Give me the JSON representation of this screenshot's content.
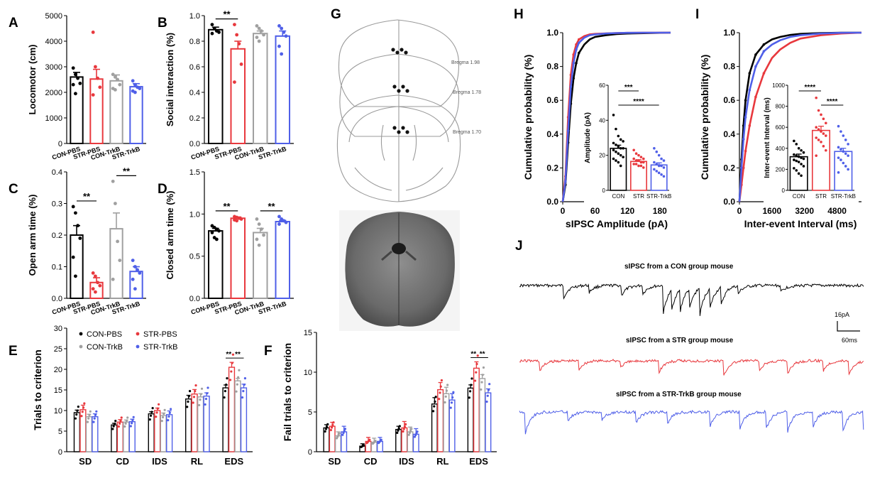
{
  "colors": {
    "con": "#000000",
    "str": "#e8383d",
    "contrkb": "#a0a0a0",
    "strtrkb": "#4f5fe8"
  },
  "panels": {
    "A": "A",
    "B": "B",
    "C": "C",
    "D": "D",
    "E": "E",
    "F": "F",
    "G": "G",
    "H": "H",
    "I": "I",
    "J": "J"
  },
  "chart_data": [
    {
      "id": "A",
      "type": "bar",
      "ylabel": "Locomotor (cm)",
      "ylim": [
        0,
        5000
      ],
      "yticks": [
        "0",
        "1000",
        "2000",
        "3000",
        "4000",
        "5000"
      ],
      "categories": [
        "CON-PBS",
        "STR-PBS",
        "CON-TrkB",
        "STR-TrkB"
      ],
      "values": [
        2600,
        2520,
        2450,
        2220
      ],
      "errors": [
        180,
        380,
        230,
        120
      ],
      "points": [
        [
          2950,
          2700,
          2550,
          2350,
          2300,
          1950
        ],
        [
          4350,
          3000,
          2550,
          2200,
          1900
        ],
        [
          2700,
          2600,
          2500,
          2300,
          2150,
          2100
        ],
        [
          2450,
          2300,
          2200,
          2150,
          2050,
          2000
        ]
      ]
    },
    {
      "id": "B",
      "type": "bar",
      "ylabel": "Social interaction (%)",
      "ylim": [
        0,
        1.0
      ],
      "yticks": [
        "0.0",
        "0.2",
        "0.4",
        "0.6",
        "0.8",
        "1.0"
      ],
      "categories": [
        "CON-PBS",
        "STR-PBS",
        "CON-TrkB",
        "STR-TrkB"
      ],
      "values": [
        0.89,
        0.74,
        0.86,
        0.84
      ],
      "errors": [
        0.02,
        0.06,
        0.02,
        0.04
      ],
      "points": [
        [
          0.93,
          0.9,
          0.88,
          0.87,
          0.86
        ],
        [
          0.93,
          0.85,
          0.78,
          0.62,
          0.48
        ],
        [
          0.92,
          0.9,
          0.88,
          0.85,
          0.83,
          0.8
        ],
        [
          0.92,
          0.9,
          0.87,
          0.84,
          0.76,
          0.7
        ]
      ],
      "sig": [
        {
          "a": 0,
          "b": 1,
          "label": "**"
        }
      ]
    },
    {
      "id": "C",
      "type": "bar",
      "ylabel": "Open arm time (%)",
      "ylim": [
        0,
        0.4
      ],
      "yticks": [
        "0.0",
        "0.1",
        "0.2",
        "0.3",
        "0.4"
      ],
      "categories": [
        "CON-PBS",
        "STR-PBS",
        "CON-TrkB",
        "STR-TrkB"
      ],
      "values": [
        0.2,
        0.05,
        0.22,
        0.085
      ],
      "errors": [
        0.03,
        0.015,
        0.05,
        0.015
      ],
      "points": [
        [
          0.29,
          0.27,
          0.23,
          0.19,
          0.13,
          0.07
        ],
        [
          0.08,
          0.07,
          0.05,
          0.04,
          0.03,
          0.02
        ],
        [
          0.37,
          0.3,
          0.18,
          0.12,
          0.06
        ],
        [
          0.12,
          0.1,
          0.09,
          0.08,
          0.06,
          0.03
        ]
      ],
      "sig": [
        {
          "a": 0,
          "b": 1,
          "label": "**"
        },
        {
          "a": 2,
          "b": 3,
          "label": "**"
        }
      ]
    },
    {
      "id": "D",
      "type": "bar",
      "ylabel": "Closed arm time (%)",
      "ylim": [
        0,
        1.5
      ],
      "yticks": [
        "0.0",
        "0.5",
        "1.0",
        "1.5"
      ],
      "categories": [
        "CON-PBS",
        "STR-PBS",
        "CON-TrkB",
        "STR-TrkB"
      ],
      "values": [
        0.8,
        0.95,
        0.78,
        0.91
      ],
      "errors": [
        0.03,
        0.015,
        0.05,
        0.015
      ],
      "points": [
        [
          0.86,
          0.84,
          0.82,
          0.8,
          0.78,
          0.72,
          0.7
        ],
        [
          0.97,
          0.96,
          0.95,
          0.94,
          0.93,
          0.92
        ],
        [
          0.94,
          0.88,
          0.82,
          0.75,
          0.7,
          0.63
        ],
        [
          0.97,
          0.94,
          0.92,
          0.9,
          0.88
        ]
      ],
      "sig": [
        {
          "a": 0,
          "b": 1,
          "label": "**"
        },
        {
          "a": 2,
          "b": 3,
          "label": "**"
        }
      ]
    },
    {
      "id": "E",
      "type": "bar",
      "ylabel": "Trials to criterion",
      "ylim": [
        0,
        30
      ],
      "yticks": [
        "0",
        "5",
        "10",
        "15",
        "20",
        "25",
        "30"
      ],
      "categories": [
        "SD",
        "CD",
        "IDS",
        "RL",
        "EDS"
      ],
      "legend": [
        "CON-PBS",
        "STR-PBS",
        "CON-TrkB",
        "STR-TrkB"
      ],
      "series": [
        {
          "name": "CON-PBS",
          "values": [
            9.5,
            6.5,
            9.2,
            12.8,
            15.5
          ],
          "errors": [
            0.6,
            0.4,
            0.5,
            0.9,
            0.7
          ]
        },
        {
          "name": "STR-PBS",
          "values": [
            10.2,
            7.2,
            10.0,
            14.0,
            20.5
          ],
          "errors": [
            1.1,
            0.6,
            0.6,
            1.1,
            1.2
          ]
        },
        {
          "name": "CON-TrkB",
          "values": [
            8.5,
            7.2,
            8.8,
            13.3,
            17.2
          ],
          "errors": [
            0.6,
            0.5,
            0.6,
            0.8,
            0.6
          ]
        },
        {
          "name": "STR-TrkB",
          "values": [
            8.5,
            7.3,
            9.0,
            13.5,
            15.5
          ],
          "errors": [
            0.7,
            0.6,
            0.9,
            0.8,
            0.9
          ]
        }
      ],
      "sig": [
        {
          "cat": 4,
          "a": 0,
          "b": 1,
          "label": "**"
        },
        {
          "cat": 4,
          "a": 1,
          "b": 3,
          "label": "**"
        }
      ]
    },
    {
      "id": "F",
      "type": "bar",
      "ylabel": "Fail trials to criterion",
      "ylim": [
        0,
        15
      ],
      "yticks": [
        "0",
        "5",
        "10",
        "15"
      ],
      "categories": [
        "SD",
        "CD",
        "IDS",
        "RL",
        "EDS"
      ],
      "series": [
        {
          "name": "CON-PBS",
          "values": [
            3.0,
            0.7,
            2.8,
            6.0,
            8.0
          ],
          "errors": [
            0.4,
            0.3,
            0.4,
            0.8,
            0.4
          ]
        },
        {
          "name": "STR-PBS",
          "values": [
            3.2,
            1.3,
            3.0,
            7.8,
            10.5
          ],
          "errors": [
            0.5,
            0.5,
            0.8,
            0.9,
            0.8
          ]
        },
        {
          "name": "CON-TrkB",
          "values": [
            2.0,
            1.2,
            2.5,
            7.3,
            9.2
          ],
          "errors": [
            0.5,
            0.5,
            0.6,
            0.8,
            0.5
          ]
        },
        {
          "name": "STR-TrkB",
          "values": [
            2.5,
            1.3,
            2.2,
            6.5,
            7.4
          ],
          "errors": [
            0.7,
            0.5,
            0.7,
            0.8,
            0.5
          ]
        }
      ],
      "sig": [
        {
          "cat": 4,
          "a": 0,
          "b": 1,
          "label": "**"
        },
        {
          "cat": 4,
          "a": 1,
          "b": 3,
          "label": "**"
        }
      ]
    },
    {
      "id": "H",
      "type": "line",
      "xlabel": "sIPSC Amplitude (pA)",
      "ylabel": "Cumulative probability (%)",
      "xlim": [
        0,
        200
      ],
      "ylim": [
        0,
        1.0
      ],
      "xticks": [
        "0",
        "60",
        "120",
        "180"
      ],
      "yticks": [
        "0.0",
        "0.2",
        "0.4",
        "0.6",
        "0.8",
        "1.0"
      ],
      "series": [
        {
          "name": "CON",
          "x": [
            0,
            5,
            10,
            15,
            20,
            25,
            30,
            40,
            50,
            60,
            80,
            100,
            120,
            150,
            180,
            200
          ],
          "y": [
            0,
            0.1,
            0.35,
            0.58,
            0.73,
            0.82,
            0.88,
            0.93,
            0.96,
            0.975,
            0.985,
            0.992,
            0.995,
            0.997,
            0.999,
            1.0
          ]
        },
        {
          "name": "STR",
          "x": [
            0,
            5,
            10,
            15,
            20,
            25,
            30,
            40,
            50,
            60,
            80,
            100,
            120,
            150,
            180,
            200
          ],
          "y": [
            0,
            0.15,
            0.5,
            0.75,
            0.87,
            0.93,
            0.96,
            0.98,
            0.99,
            0.993,
            0.996,
            0.998,
            0.999,
            1.0,
            1.0,
            1.0
          ]
        },
        {
          "name": "STR-TrkB",
          "x": [
            0,
            5,
            10,
            15,
            20,
            25,
            30,
            40,
            50,
            60,
            80,
            100,
            120,
            150,
            180,
            200
          ],
          "y": [
            0,
            0.12,
            0.42,
            0.68,
            0.82,
            0.9,
            0.94,
            0.97,
            0.985,
            0.99,
            0.995,
            0.998,
            0.999,
            1.0,
            1.0,
            1.0
          ]
        }
      ],
      "inset": {
        "ylabel": "Amplitude (pA)",
        "ylim": [
          0,
          60
        ],
        "yticks": [
          "0",
          "20",
          "40",
          "60"
        ],
        "categories": [
          "CON",
          "STR",
          "STR-TrkB"
        ],
        "values": [
          24,
          16.5,
          14.5
        ],
        "errors": [
          1.8,
          1.0,
          1.2
        ],
        "points": [
          [
            43,
            35,
            31,
            29,
            28,
            27,
            26,
            25,
            24,
            24,
            23,
            22,
            21,
            20,
            19,
            18,
            17,
            16,
            14
          ],
          [
            23,
            21,
            20,
            19,
            18,
            18,
            17,
            17,
            16,
            16,
            15,
            15,
            14,
            14,
            13
          ],
          [
            24,
            22,
            20,
            18,
            17,
            16,
            15,
            14,
            14,
            13,
            12,
            11,
            10,
            9,
            8
          ]
        ],
        "sig": [
          {
            "a": 0,
            "b": 1,
            "label": "***"
          },
          {
            "a": 0,
            "b": 2,
            "label": "****"
          }
        ]
      }
    },
    {
      "id": "I",
      "type": "line",
      "xlabel": "Inter-event Interval (ms)",
      "ylabel": "Cumulative probability (%)",
      "xlim": [
        0,
        6000
      ],
      "ylim": [
        0,
        1.0
      ],
      "xticks": [
        "0",
        "1600",
        "3200",
        "4800"
      ],
      "yticks": [
        "0.0",
        "0.2",
        "0.4",
        "0.6",
        "0.8",
        "1.0"
      ],
      "series": [
        {
          "name": "CON",
          "x": [
            0,
            100,
            200,
            300,
            500,
            800,
            1200,
            1600,
            2000,
            2500,
            3000,
            4000,
            5000,
            6000
          ],
          "y": [
            0,
            0.25,
            0.45,
            0.6,
            0.76,
            0.87,
            0.93,
            0.96,
            0.975,
            0.987,
            0.993,
            0.998,
            1.0,
            1.0
          ]
        },
        {
          "name": "STR",
          "x": [
            0,
            100,
            200,
            300,
            500,
            800,
            1200,
            1600,
            2000,
            2500,
            3000,
            4000,
            5000,
            6000
          ],
          "y": [
            0,
            0.1,
            0.2,
            0.3,
            0.45,
            0.62,
            0.76,
            0.85,
            0.9,
            0.94,
            0.965,
            0.985,
            0.995,
            1.0
          ]
        },
        {
          "name": "STR-TrkB",
          "x": [
            0,
            100,
            200,
            300,
            500,
            800,
            1200,
            1600,
            2000,
            2500,
            3000,
            4000,
            5000,
            6000
          ],
          "y": [
            0,
            0.2,
            0.37,
            0.5,
            0.66,
            0.8,
            0.89,
            0.93,
            0.955,
            0.975,
            0.985,
            0.995,
            0.999,
            1.0
          ]
        }
      ],
      "inset": {
        "ylabel": "Inter-event Interval (ms)",
        "ylim": [
          0,
          1000
        ],
        "yticks": [
          "0",
          "200",
          "400",
          "600",
          "800",
          "1000"
        ],
        "categories": [
          "CON",
          "STR",
          "STR-TrkB"
        ],
        "values": [
          320,
          570,
          370
        ],
        "errors": [
          25,
          40,
          30
        ],
        "points": [
          [
            470,
            440,
            400,
            380,
            360,
            340,
            330,
            320,
            310,
            300,
            290,
            280,
            270,
            250,
            230,
            210,
            190,
            160,
            140
          ],
          [
            880,
            760,
            720,
            680,
            640,
            600,
            580,
            560,
            540,
            520,
            500,
            480,
            460,
            420,
            380,
            330
          ],
          [
            610,
            560,
            520,
            480,
            440,
            410,
            390,
            370,
            350,
            330,
            310,
            290,
            260,
            230,
            200,
            170
          ]
        ],
        "sig": [
          {
            "a": 0,
            "b": 1,
            "label": "****"
          },
          {
            "a": 1,
            "b": 2,
            "label": "****"
          }
        ]
      }
    }
  ],
  "atlas": {
    "labels": [
      "Bregma 1.98",
      "Bregma 1.78",
      "Bregma 1.70"
    ]
  },
  "traces": {
    "titles": [
      "sIPSC  from a CON group mouse",
      "sIPSC  from a STR group mouse",
      "sIPSC  from a STR-TrkB group mouse"
    ],
    "scale_y": "16pA",
    "scale_x": "60ms"
  }
}
